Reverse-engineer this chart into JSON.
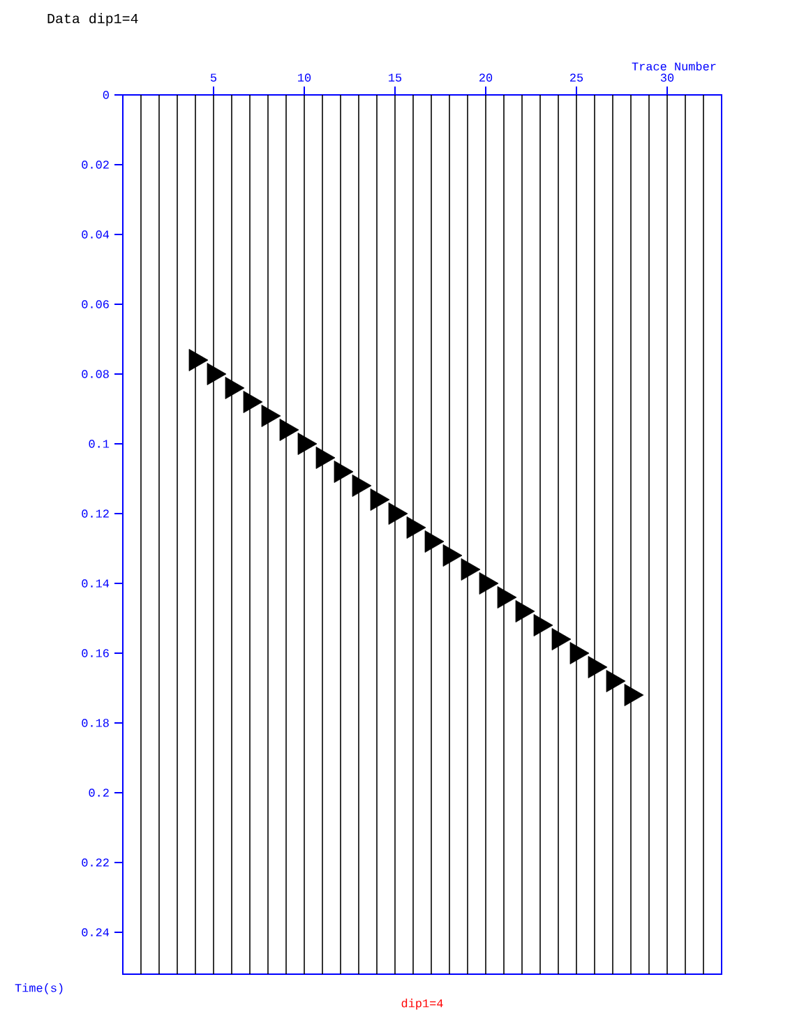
{
  "chart_data": {
    "type": "scatter",
    "title": "Data dip1=4",
    "xlabel": "Trace Number",
    "ylabel": "Time(s)",
    "annotations": [
      "dip1=4"
    ],
    "x": [
      4,
      5,
      6,
      7,
      8,
      9,
      10,
      11,
      12,
      13,
      14,
      15,
      16,
      17,
      18,
      19,
      20,
      21,
      22,
      23,
      24,
      25,
      26,
      27,
      28
    ],
    "series": [
      {
        "color": "#000000",
        "values": [
          0.076,
          0.08,
          0.084,
          0.088,
          0.092,
          0.096,
          0.1,
          0.104,
          0.108,
          0.112,
          0.116,
          0.12,
          0.124,
          0.128,
          0.132,
          0.136,
          0.14,
          0.144,
          0.148,
          0.152,
          0.156,
          0.16,
          0.164,
          0.168,
          0.172
        ]
      }
    ],
    "marker": "triangle",
    "xlim": [
      0,
      33
    ],
    "ylim": [
      0.252,
      0
    ],
    "xticks": [
      5,
      10,
      15,
      20,
      25,
      30
    ],
    "yticks": [
      0,
      0.02,
      0.04,
      0.06,
      0.08,
      0.1,
      0.12,
      0.14,
      0.16,
      0.18,
      0.2,
      0.22,
      0.24
    ],
    "ref_lines": [
      {
        "axis": "x",
        "value": 1,
        "color": "#000000"
      },
      {
        "axis": "x",
        "value": 2,
        "color": "#000000"
      },
      {
        "axis": "x",
        "value": 3,
        "color": "#000000"
      },
      {
        "axis": "x",
        "value": 4,
        "color": "#000000"
      },
      {
        "axis": "x",
        "value": 5,
        "color": "#000000"
      },
      {
        "axis": "x",
        "value": 6,
        "color": "#000000"
      },
      {
        "axis": "x",
        "value": 7,
        "color": "#000000"
      },
      {
        "axis": "x",
        "value": 8,
        "color": "#000000"
      },
      {
        "axis": "x",
        "value": 9,
        "color": "#000000"
      },
      {
        "axis": "x",
        "value": 10,
        "color": "#000000"
      },
      {
        "axis": "x",
        "value": 11,
        "color": "#000000"
      },
      {
        "axis": "x",
        "value": 12,
        "color": "#000000"
      },
      {
        "axis": "x",
        "value": 13,
        "color": "#000000"
      },
      {
        "axis": "x",
        "value": 14,
        "color": "#000000"
      },
      {
        "axis": "x",
        "value": 15,
        "color": "#000000"
      },
      {
        "axis": "x",
        "value": 16,
        "color": "#000000"
      },
      {
        "axis": "x",
        "value": 17,
        "color": "#000000"
      },
      {
        "axis": "x",
        "value": 18,
        "color": "#000000"
      },
      {
        "axis": "x",
        "value": 19,
        "color": "#000000"
      },
      {
        "axis": "x",
        "value": 20,
        "color": "#000000"
      },
      {
        "axis": "x",
        "value": 21,
        "color": "#000000"
      },
      {
        "axis": "x",
        "value": 22,
        "color": "#000000"
      },
      {
        "axis": "x",
        "value": 23,
        "color": "#000000"
      },
      {
        "axis": "x",
        "value": 24,
        "color": "#000000"
      },
      {
        "axis": "x",
        "value": 25,
        "color": "#000000"
      },
      {
        "axis": "x",
        "value": 26,
        "color": "#000000"
      },
      {
        "axis": "x",
        "value": 27,
        "color": "#000000"
      },
      {
        "axis": "x",
        "value": 28,
        "color": "#000000"
      },
      {
        "axis": "x",
        "value": 29,
        "color": "#000000"
      },
      {
        "axis": "x",
        "value": 30,
        "color": "#000000"
      },
      {
        "axis": "x",
        "value": 31,
        "color": "#000000"
      },
      {
        "axis": "x",
        "value": 32,
        "color": "#000000"
      }
    ]
  }
}
